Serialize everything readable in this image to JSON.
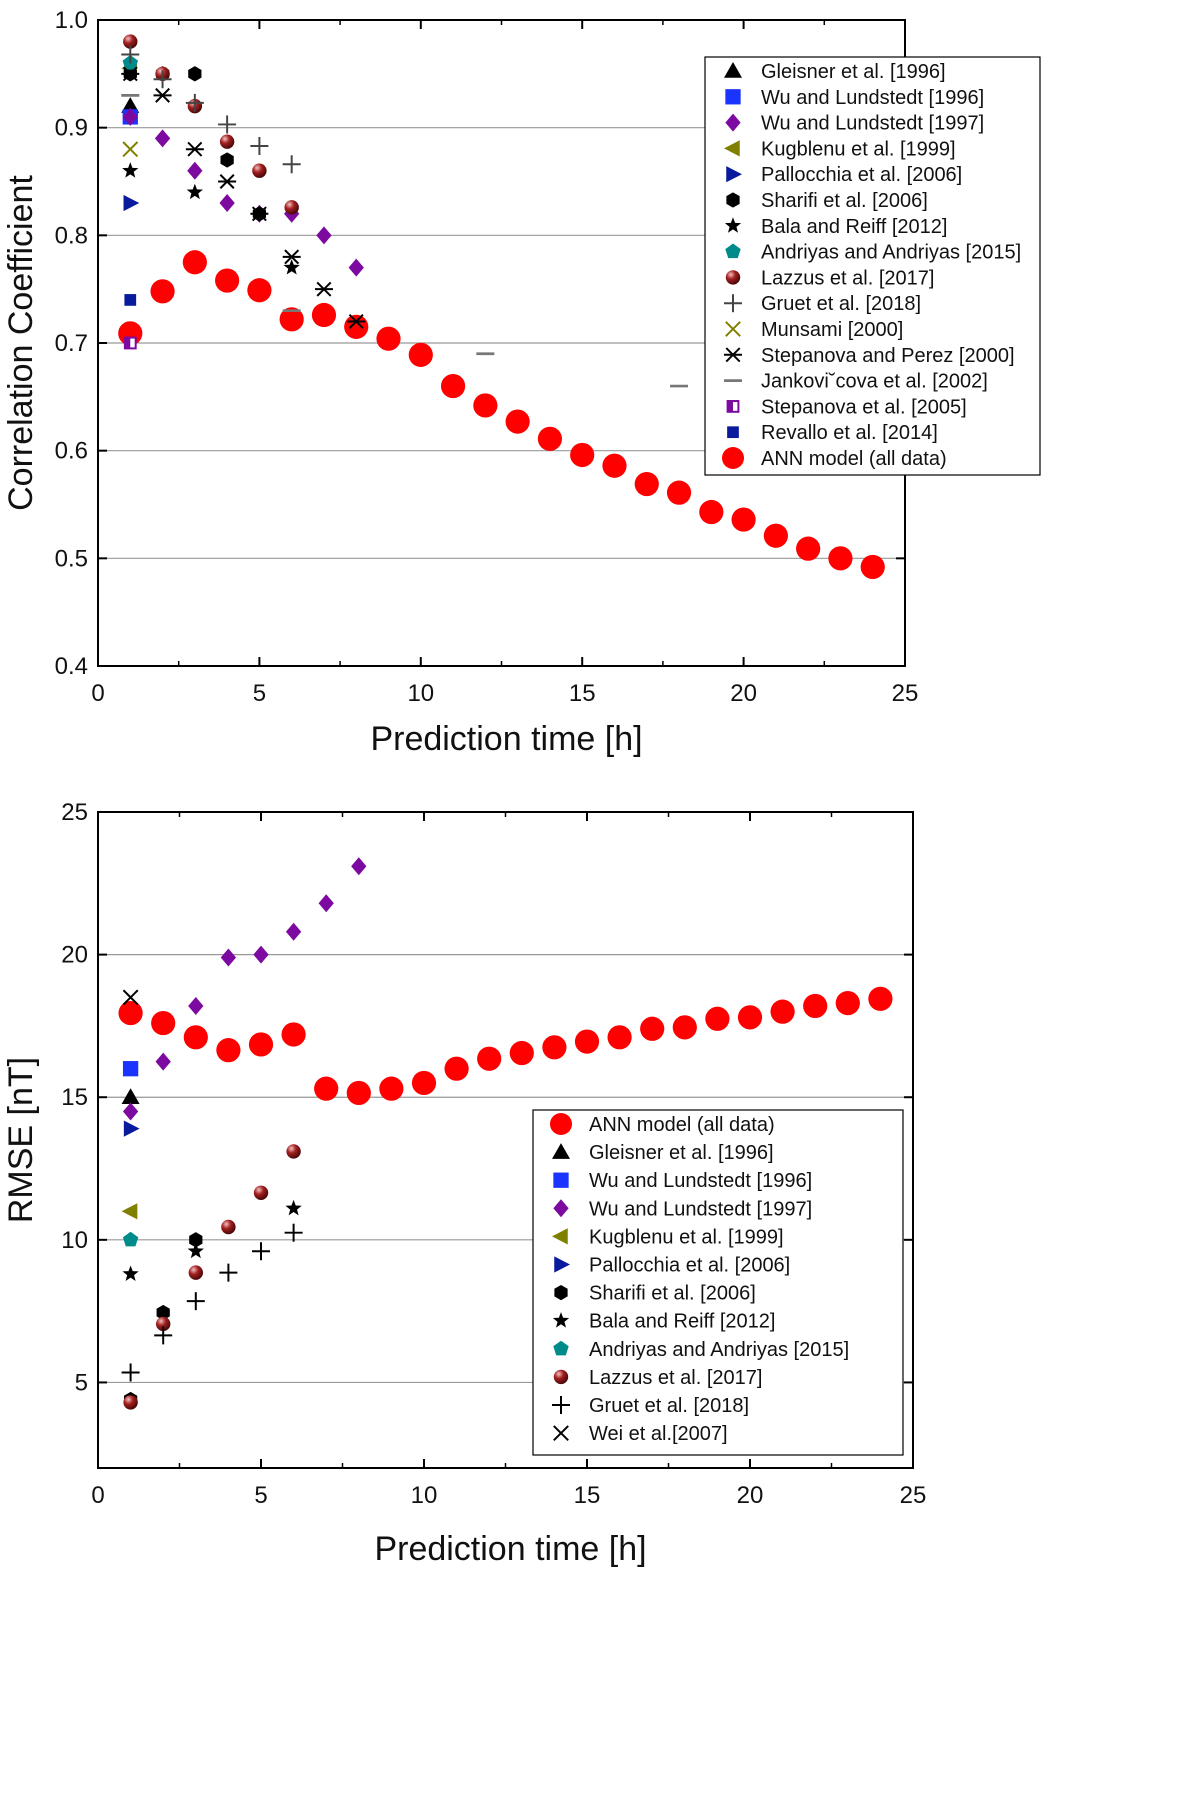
{
  "colors": {
    "ann": "#ff0000",
    "black": "#000000",
    "blue": "#1a33ff",
    "purple": "#7d0aa0",
    "olive": "#808000",
    "navy": "#0a1a9c",
    "teal": "#008b8b",
    "darkred": "#8b1a1a",
    "gray": "#777777",
    "grid": "#999999"
  },
  "chart_data": [
    {
      "type": "scatter",
      "title": "",
      "xlabel": "Prediction time [h]",
      "ylabel": "Correlation Coefficient",
      "xlim": [
        0,
        25
      ],
      "ylim": [
        0.4,
        1.0
      ],
      "xticks": [
        "0",
        "5",
        "10",
        "15",
        "20",
        "25"
      ],
      "xtick_values": [
        0,
        5,
        10,
        15,
        20,
        25
      ],
      "yticks": [
        "0.4",
        "0.5",
        "0.6",
        "0.7",
        "0.8",
        "0.9",
        "1.0"
      ],
      "ytick_values": [
        0.4,
        0.5,
        0.6,
        0.7,
        0.8,
        0.9,
        1.0
      ],
      "grid": "horizontal",
      "legend_position": "top-right",
      "series": [
        {
          "name": "Gleisner et al. [1996]",
          "marker": "triangle",
          "color": "#000000",
          "points": [
            [
              1,
              0.92
            ]
          ]
        },
        {
          "name": "Wu and Lundstedt [1996]",
          "marker": "square",
          "color": "#1a33ff",
          "points": [
            [
              1,
              0.91
            ]
          ]
        },
        {
          "name": "Wu and Lundstedt [1997]",
          "marker": "diamond",
          "color": "#7d0aa0",
          "points": [
            [
              1,
              0.91
            ],
            [
              2,
              0.89
            ],
            [
              3,
              0.86
            ],
            [
              4,
              0.83
            ],
            [
              5,
              0.82
            ],
            [
              6,
              0.82
            ],
            [
              7,
              0.8
            ],
            [
              8,
              0.77
            ]
          ]
        },
        {
          "name": "Kugblenu et al. [1999]",
          "marker": "triangle-left",
          "color": "#808000",
          "points": [
            [
              1,
              0.955
            ]
          ]
        },
        {
          "name": "Pallocchia et al. [2006]",
          "marker": "triangle-right",
          "color": "#0a1a9c",
          "points": [
            [
              1,
              0.83
            ]
          ]
        },
        {
          "name": "Sharifi et al. [2006]",
          "marker": "hexagon",
          "color": "#000000",
          "points": [
            [
              1,
              0.95
            ],
            [
              2,
              0.95
            ],
            [
              3,
              0.95
            ],
            [
              4,
              0.87
            ],
            [
              5,
              0.82
            ]
          ]
        },
        {
          "name": "Bala and Reiff [2012]",
          "marker": "star",
          "color": "#000000",
          "points": [
            [
              1,
              0.86
            ],
            [
              3,
              0.84
            ],
            [
              6,
              0.77
            ]
          ]
        },
        {
          "name": "Andriyas and Andriyas [2015]",
          "marker": "pentagon",
          "color": "#008b8b",
          "points": [
            [
              1,
              0.96
            ]
          ]
        },
        {
          "name": "Lazzus et al. [2017]",
          "marker": "sphere",
          "color": "#8b1a1a",
          "points": [
            [
              1,
              0.98
            ],
            [
              2,
              0.95
            ],
            [
              3,
              0.92
            ],
            [
              4,
              0.887
            ],
            [
              5,
              0.86
            ],
            [
              6,
              0.826
            ]
          ]
        },
        {
          "name": "Gruet et al. [2018]",
          "marker": "plus",
          "color": "#444444",
          "points": [
            [
              1,
              0.968
            ],
            [
              2,
              0.945
            ],
            [
              3,
              0.923
            ],
            [
              4,
              0.903
            ],
            [
              5,
              0.883
            ],
            [
              6,
              0.866
            ]
          ]
        },
        {
          "name": "Munsami [2000]",
          "marker": "x",
          "color": "#808000",
          "points": [
            [
              1,
              0.88
            ]
          ]
        },
        {
          "name": "Stepanova and Perez [2000]",
          "marker": "asterisk",
          "color": "#000000",
          "points": [
            [
              1,
              0.95
            ],
            [
              2,
              0.93
            ],
            [
              3,
              0.88
            ],
            [
              4,
              0.85
            ],
            [
              5,
              0.82
            ],
            [
              6,
              0.78
            ],
            [
              7,
              0.75
            ],
            [
              8,
              0.72
            ]
          ]
        },
        {
          "name": "Jankovi˘cova et al. [2002]",
          "marker": "dash",
          "color": "#777777",
          "points": [
            [
              1,
              0.93
            ],
            [
              6,
              0.73
            ],
            [
              12,
              0.69
            ],
            [
              18,
              0.66
            ]
          ]
        },
        {
          "name": "Stepanova et al. [2005]",
          "marker": "halfsquare",
          "color": "#7d0aa0",
          "points": [
            [
              1,
              0.7
            ]
          ]
        },
        {
          "name": "Revallo et al. [2014]",
          "marker": "smallsquare",
          "color": "#0a1a9c",
          "points": [
            [
              1,
              0.74
            ]
          ]
        },
        {
          "name": "ANN model (all data)",
          "marker": "circle",
          "color": "#ff0000",
          "points": [
            [
              1,
              0.709
            ],
            [
              2,
              0.748
            ],
            [
              3,
              0.775
            ],
            [
              4,
              0.758
            ],
            [
              5,
              0.749
            ],
            [
              6,
              0.722
            ],
            [
              7,
              0.726
            ],
            [
              8,
              0.715
            ],
            [
              9,
              0.704
            ],
            [
              10,
              0.689
            ],
            [
              11,
              0.66
            ],
            [
              12,
              0.642
            ],
            [
              13,
              0.627
            ],
            [
              14,
              0.611
            ],
            [
              15,
              0.596
            ],
            [
              16,
              0.586
            ],
            [
              17,
              0.569
            ],
            [
              18,
              0.561
            ],
            [
              19,
              0.543
            ],
            [
              20,
              0.536
            ],
            [
              21,
              0.521
            ],
            [
              22,
              0.509
            ],
            [
              23,
              0.5
            ],
            [
              24,
              0.492
            ]
          ]
        }
      ]
    },
    {
      "type": "scatter",
      "title": "",
      "xlabel": "Prediction time [h]",
      "ylabel": "RMSE [nT]",
      "xlim": [
        0,
        25
      ],
      "ylim": [
        2,
        25
      ],
      "xticks": [
        "0",
        "5",
        "10",
        "15",
        "20",
        "25"
      ],
      "xtick_values": [
        0,
        5,
        10,
        15,
        20,
        25
      ],
      "yticks": [
        "5",
        "10",
        "15",
        "20",
        "25"
      ],
      "ytick_values": [
        5,
        10,
        15,
        20,
        25
      ],
      "grid": "horizontal",
      "legend_position": "bottom-right",
      "series": [
        {
          "name": "ANN model (all data)",
          "marker": "circle",
          "color": "#ff0000",
          "points": [
            [
              1,
              17.95
            ],
            [
              2,
              17.6
            ],
            [
              3,
              17.1
            ],
            [
              4,
              16.65
            ],
            [
              5,
              16.85
            ],
            [
              6,
              17.2
            ],
            [
              7,
              15.3
            ],
            [
              8,
              15.15
            ],
            [
              9,
              15.3
            ],
            [
              10,
              15.5
            ],
            [
              11,
              16.0
            ],
            [
              12,
              16.35
            ],
            [
              13,
              16.55
            ],
            [
              14,
              16.75
            ],
            [
              15,
              16.95
            ],
            [
              16,
              17.1
            ],
            [
              17,
              17.4
            ],
            [
              18,
              17.45
            ],
            [
              19,
              17.75
            ],
            [
              20,
              17.8
            ],
            [
              21,
              18.0
            ],
            [
              22,
              18.2
            ],
            [
              23,
              18.3
            ],
            [
              24,
              18.45
            ]
          ]
        },
        {
          "name": "Gleisner et al. [1996]",
          "marker": "triangle",
          "color": "#000000",
          "points": [
            [
              1,
              15.0
            ]
          ]
        },
        {
          "name": "Wu and Lundstedt [1996]",
          "marker": "square",
          "color": "#1a33ff",
          "points": [
            [
              1,
              16.0
            ]
          ]
        },
        {
          "name": "Wu and Lundstedt [1997]",
          "marker": "diamond",
          "color": "#7d0aa0",
          "points": [
            [
              1,
              14.5
            ],
            [
              2,
              16.25
            ],
            [
              3,
              18.2
            ],
            [
              4,
              19.9
            ],
            [
              5,
              20.0
            ],
            [
              6,
              20.8
            ],
            [
              7,
              21.8
            ],
            [
              8,
              23.1
            ]
          ]
        },
        {
          "name": "Kugblenu et al. [1999]",
          "marker": "triangle-left",
          "color": "#808000",
          "points": [
            [
              1,
              11.0
            ]
          ]
        },
        {
          "name": "Pallocchia et al. [2006]",
          "marker": "triangle-right",
          "color": "#0a1a9c",
          "points": [
            [
              1,
              13.9
            ]
          ]
        },
        {
          "name": "Sharifi et al. [2006]",
          "marker": "hexagon",
          "color": "#000000",
          "points": [
            [
              1,
              4.4
            ],
            [
              2,
              7.45
            ],
            [
              3,
              10.0
            ]
          ]
        },
        {
          "name": "Bala and Reiff [2012]",
          "marker": "star",
          "color": "#000000",
          "points": [
            [
              1,
              8.8
            ],
            [
              3,
              9.6
            ],
            [
              6,
              11.1
            ]
          ]
        },
        {
          "name": "Andriyas and Andriyas [2015]",
          "marker": "pentagon",
          "color": "#008b8b",
          "points": [
            [
              1,
              10.0
            ]
          ]
        },
        {
          "name": "Lazzus et al. [2017]",
          "marker": "sphere",
          "color": "#8b1a1a",
          "points": [
            [
              1,
              4.3
            ],
            [
              2,
              7.05
            ],
            [
              3,
              8.85
            ],
            [
              4,
              10.45
            ],
            [
              5,
              11.65
            ],
            [
              6,
              13.1
            ]
          ]
        },
        {
          "name": "Gruet et al. [2018]",
          "marker": "plus",
          "color": "#000000",
          "points": [
            [
              1,
              5.35
            ],
            [
              2,
              6.65
            ],
            [
              3,
              7.85
            ],
            [
              4,
              8.85
            ],
            [
              5,
              9.6
            ],
            [
              6,
              10.25
            ]
          ]
        },
        {
          "name": "Wei et al.[2007]",
          "marker": "x",
          "color": "#000000",
          "points": [
            [
              1,
              18.5
            ]
          ]
        }
      ]
    }
  ]
}
